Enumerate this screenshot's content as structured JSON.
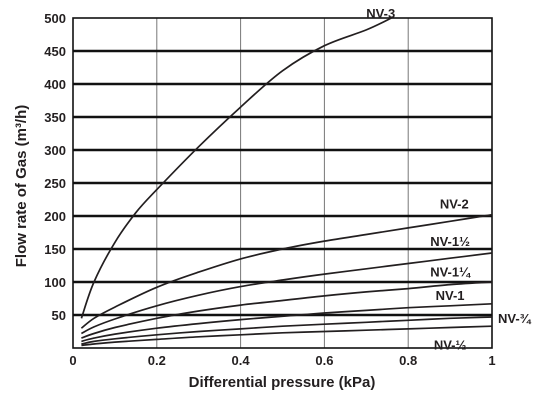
{
  "chart_data": {
    "type": "line",
    "xlabel": "Differential pressure (kPa)",
    "ylabel": "Flow rate of Gas (m³/h)",
    "xlim": [
      0,
      1
    ],
    "ylim": [
      0,
      500
    ],
    "x_ticks": [
      "0",
      "0.2",
      "0.4",
      "0.6",
      "0.8",
      "1"
    ],
    "y_ticks": [
      "50",
      "100",
      "150",
      "200",
      "250",
      "300",
      "350",
      "400",
      "450",
      "500"
    ],
    "grid": true,
    "series": [
      {
        "name": "NV-3",
        "x": [
          0.02,
          0.05,
          0.1,
          0.15,
          0.2,
          0.3,
          0.4,
          0.5,
          0.6,
          0.7,
          0.76
        ],
        "y": [
          45,
          100,
          160,
          205,
          240,
          305,
          365,
          420,
          458,
          482,
          500
        ]
      },
      {
        "name": "NV-2",
        "x": [
          0.02,
          0.05,
          0.1,
          0.2,
          0.3,
          0.4,
          0.5,
          0.6,
          0.7,
          0.8,
          0.9,
          1.0
        ],
        "y": [
          30,
          45,
          62,
          92,
          115,
          135,
          150,
          162,
          172,
          182,
          192,
          202
        ]
      },
      {
        "name": "NV-1½",
        "x": [
          0.02,
          0.05,
          0.1,
          0.2,
          0.3,
          0.4,
          0.5,
          0.6,
          0.7,
          0.8,
          0.9,
          1.0
        ],
        "y": [
          22,
          32,
          44,
          64,
          80,
          93,
          103,
          112,
          120,
          128,
          136,
          144
        ]
      },
      {
        "name": "NV-1¼",
        "x": [
          0.02,
          0.05,
          0.1,
          0.2,
          0.3,
          0.4,
          0.5,
          0.6,
          0.7,
          0.8,
          0.9,
          1.0
        ],
        "y": [
          15,
          22,
          31,
          45,
          56,
          65,
          72,
          79,
          85,
          90,
          96,
          100
        ]
      },
      {
        "name": "NV-1",
        "x": [
          0.02,
          0.05,
          0.1,
          0.2,
          0.3,
          0.4,
          0.5,
          0.6,
          0.7,
          0.8,
          0.9,
          1.0
        ],
        "y": [
          10,
          15,
          21,
          30,
          37,
          43,
          48,
          53,
          57,
          61,
          64,
          67
        ]
      },
      {
        "name": "NV-¾",
        "x": [
          0.02,
          0.05,
          0.1,
          0.2,
          0.3,
          0.4,
          0.5,
          0.6,
          0.7,
          0.8,
          0.9,
          1.0
        ],
        "y": [
          6,
          10,
          14,
          20,
          25,
          29,
          33,
          36,
          39,
          42,
          45,
          47
        ]
      },
      {
        "name": "NV-½",
        "x": [
          0.02,
          0.05,
          0.1,
          0.2,
          0.3,
          0.4,
          0.5,
          0.6,
          0.7,
          0.8,
          0.9,
          1.0
        ],
        "y": [
          4,
          6,
          9,
          13,
          17,
          20,
          23,
          25,
          27,
          29,
          31,
          33
        ]
      }
    ]
  }
}
